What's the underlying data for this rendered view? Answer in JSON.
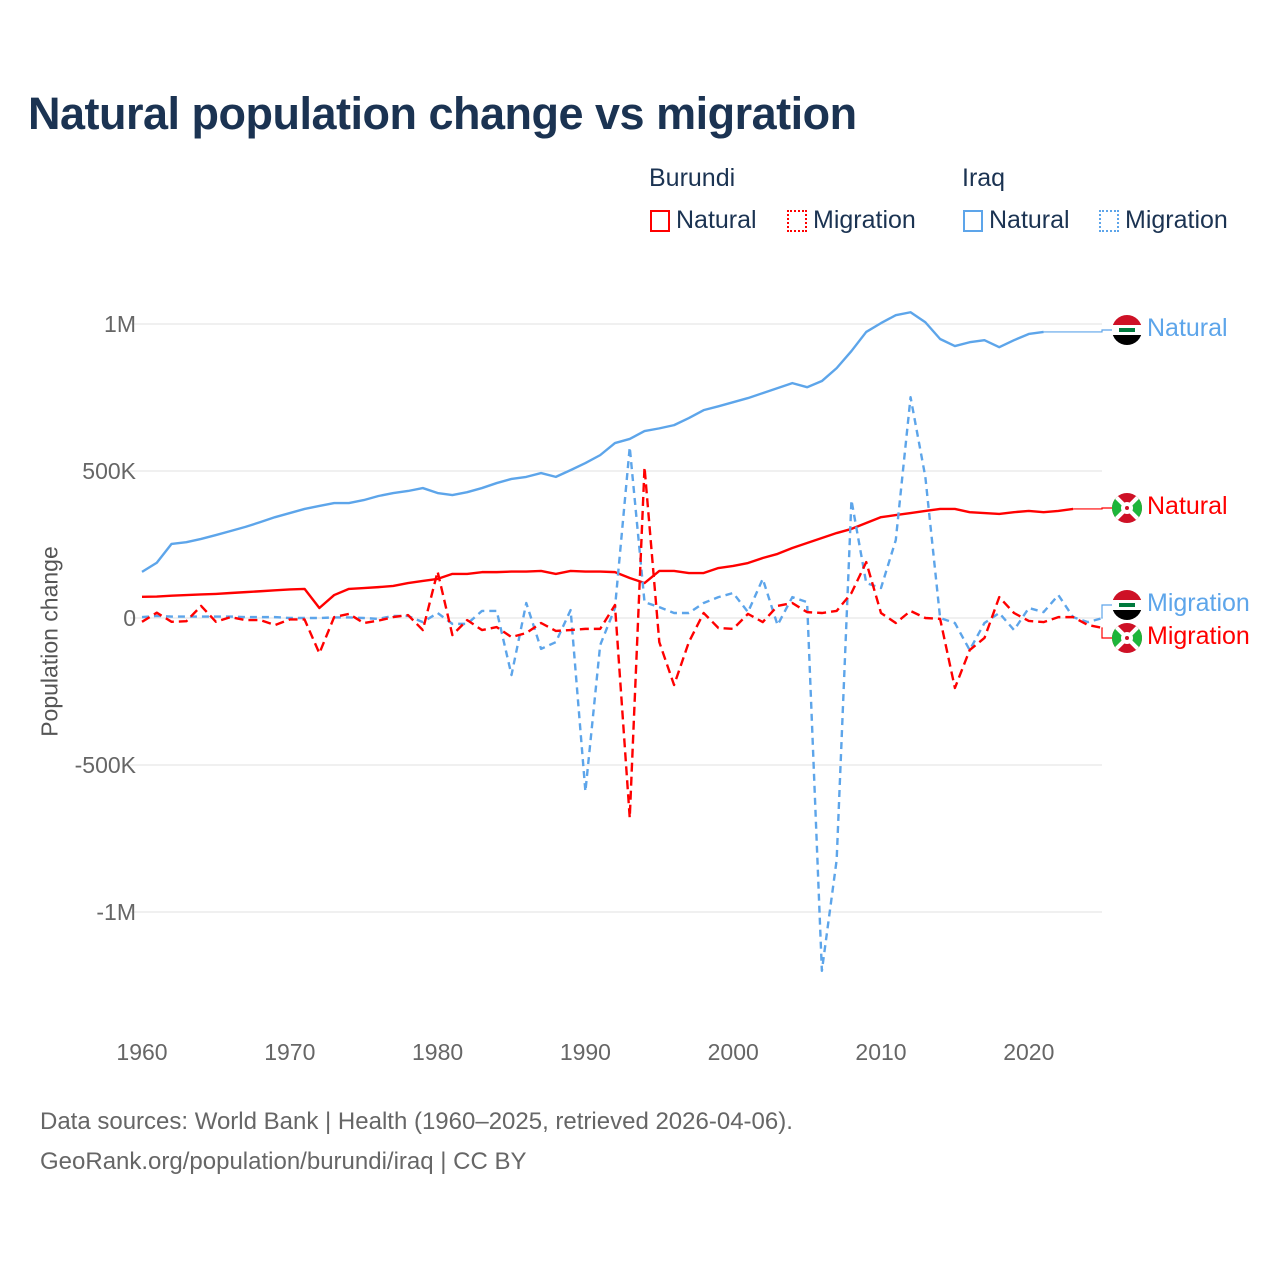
{
  "chart_data": {
    "type": "line",
    "title": "Natural population change vs migration",
    "xlabel": "",
    "ylabel": "Population change",
    "xlim": [
      1960,
      2025
    ],
    "ylim": [
      -1200000,
      1050000
    ],
    "x_ticks": [
      "1960",
      "1970",
      "1980",
      "1990",
      "2000",
      "2010",
      "2020"
    ],
    "y_ticks": [
      {
        "value": 1000000,
        "label": "1M"
      },
      {
        "value": 500000,
        "label": "500K"
      },
      {
        "value": 0,
        "label": "0"
      },
      {
        "value": -500000,
        "label": "-500K"
      },
      {
        "value": -1000000,
        "label": "-1M"
      }
    ],
    "grid": true,
    "legend_placement": "top-right",
    "legend": {
      "groups": [
        {
          "country": "Burundi",
          "items": [
            "Natural",
            "Migration"
          ]
        },
        {
          "country": "Iraq",
          "items": [
            "Natural",
            "Migration"
          ]
        }
      ]
    },
    "series": [
      {
        "name": "Iraq Natural",
        "country": "Iraq",
        "kind": "Natural",
        "color": "#5da5ea",
        "dashed": false,
        "start_year": 1960,
        "values_k": [
          157,
          188,
          252,
          258,
          269,
          282,
          296,
          310,
          326,
          343,
          357,
          371,
          381,
          391,
          391,
          401,
          415,
          425,
          432,
          442,
          425,
          418,
          428,
          442,
          459,
          473,
          480,
          493,
          480,
          503,
          527,
          554,
          595,
          609,
          636,
          645,
          656,
          680,
          707,
          720,
          734,
          748,
          765,
          782,
          799,
          785,
          806,
          850,
          908,
          973,
          1003,
          1030,
          1040,
          1006,
          949,
          925,
          938,
          945,
          921,
          945,
          966,
          973
        ]
      },
      {
        "name": "Burundi Natural",
        "country": "Burundi",
        "kind": "Natural",
        "color": "#ff0000",
        "dashed": false,
        "start_year": 1960,
        "values_k": [
          72,
          73,
          76,
          78,
          80,
          82,
          85,
          88,
          91,
          94,
          97,
          99,
          34,
          78,
          99,
          102,
          105,
          109,
          119,
          126,
          133,
          150,
          150,
          156,
          156,
          158,
          158,
          160,
          150,
          160,
          158,
          158,
          156,
          136,
          119,
          160,
          160,
          153,
          153,
          170,
          177,
          187,
          204,
          218,
          238,
          255,
          272,
          289,
          303,
          323,
          343,
          350,
          357,
          364,
          371,
          371,
          360,
          357,
          354,
          360,
          364,
          360,
          364,
          371
        ]
      },
      {
        "name": "Iraq Migration",
        "country": "Iraq",
        "kind": "Migration",
        "color": "#5da5ea",
        "dashed": true,
        "start_year": 1960,
        "values_k": [
          3,
          7,
          5,
          5,
          5,
          5,
          5,
          3,
          3,
          3,
          0,
          0,
          0,
          2,
          2,
          0,
          -3,
          7,
          7,
          -14,
          17,
          -20,
          -20,
          24,
          24,
          -194,
          51,
          -105,
          -82,
          27,
          -590,
          -92,
          34,
          581,
          54,
          37,
          17,
          17,
          51,
          71,
          85,
          20,
          133,
          -24,
          71,
          54,
          -1200,
          -823,
          401,
          119,
          102,
          265,
          751,
          480,
          0,
          -17,
          -109,
          -17,
          17,
          -41,
          34,
          20,
          78,
          3,
          -14,
          0
        ]
      },
      {
        "name": "Burundi Migration",
        "country": "Burundi",
        "kind": "Migration",
        "color": "#ff0000",
        "dashed": true,
        "start_year": 1960,
        "values_k": [
          -13,
          18,
          -13,
          -11,
          41,
          -13,
          3,
          -7,
          -7,
          -24,
          -5,
          -5,
          -120,
          3,
          14,
          -17,
          -9,
          3,
          10,
          -41,
          158,
          -58,
          -7,
          -41,
          -31,
          -65,
          -51,
          -17,
          -44,
          -41,
          -37,
          -37,
          44,
          -680,
          513,
          -82,
          -228,
          -82,
          17,
          -34,
          -37,
          14,
          -14,
          41,
          51,
          20,
          17,
          24,
          85,
          190,
          17,
          -17,
          24,
          0,
          -3,
          -238,
          -109,
          -68,
          71,
          17,
          -10,
          -14,
          3,
          3,
          -24,
          -34
        ]
      }
    ],
    "end_labels": [
      {
        "text": "Natural",
        "country": "Iraq",
        "color": "#5da5ea"
      },
      {
        "text": "Natural",
        "country": "Burundi",
        "color": "#ff0000"
      },
      {
        "text": "Migration",
        "country": "Iraq",
        "color": "#5da5ea"
      },
      {
        "text": "Migration",
        "country": "Burundi",
        "color": "#ff0000"
      }
    ]
  },
  "footer": {
    "line1": "Data sources: World Bank | Health (1960–2025, retrieved 2026-04-06).",
    "line2": "GeoRank.org/population/burundi/iraq | CC BY"
  }
}
